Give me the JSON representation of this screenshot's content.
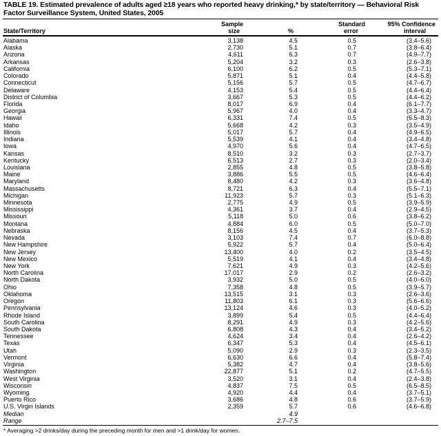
{
  "title": "TABLE 19. Estimated prevalence of adults aged ≥18 years who reported heavy drinking,* by state/territory — Behavioral Risk Factor Surveillance System, United States, 2005",
  "headers": {
    "state": "State/Territory",
    "sample_1": "Sample",
    "sample_2": "size",
    "pct": "%",
    "se_1": "Standard",
    "se_2": "error",
    "ci_1": "95% Confidence",
    "ci_2": "interval"
  },
  "rows": [
    [
      "Alabama",
      "3,138",
      "4.5",
      "0.5",
      "(3.4–5.6)"
    ],
    [
      "Alaska",
      "2,730",
      "5.1",
      "0.7",
      "(3.8–6.4)"
    ],
    [
      "Arizona",
      "4,611",
      "6.3",
      "0.7",
      "(4.9–7.7)"
    ],
    [
      "Arkansas",
      "5,204",
      "3.2",
      "0.3",
      "(2.6–3.8)"
    ],
    [
      "California",
      "6,100",
      "6.2",
      "0.5",
      "(5.3–7.1)"
    ],
    [
      "Colorado",
      "5,871",
      "5.1",
      "0.4",
      "(4.4–5.8)"
    ],
    [
      "Connecticut",
      "5,156",
      "5.7",
      "0.5",
      "(4.7–6.7)"
    ],
    [
      "Delaware",
      "4,153",
      "5.4",
      "0.5",
      "(4.4–6.4)"
    ],
    [
      "District of Columbia",
      "3,667",
      "5.3",
      "0.5",
      "(4.4–6.2)"
    ],
    [
      "Florida",
      "8,017",
      "6.9",
      "0.4",
      "(6.1–7.7)"
    ],
    [
      "Georgia",
      "5,967",
      "4.0",
      "0.4",
      "(3.3–4.7)"
    ],
    [
      "Hawaii",
      "6,331",
      "7.4",
      "0.5",
      "(6.5–8.3)"
    ],
    [
      "Idaho",
      "5,668",
      "4.2",
      "0.3",
      "(3.5–4.9)"
    ],
    [
      "Illinois",
      "5,017",
      "5.7",
      "0.4",
      "(4.9–6.5)"
    ],
    [
      "Indiana",
      "5,539",
      "4.1",
      "0.4",
      "(3.4–4.8)"
    ],
    [
      "Iowa",
      "4,970",
      "5.6",
      "0.4",
      "(4.7–6.5)"
    ],
    [
      "Kansas",
      "8,510",
      "3.2",
      "0.3",
      "(2.7–3.7)"
    ],
    [
      "Kentucky",
      "6,513",
      "2.7",
      "0.3",
      "(2.0–3.4)"
    ],
    [
      "Louisiana",
      "2,855",
      "4.8",
      "0.5",
      "(3.8–5.8)"
    ],
    [
      "Maine",
      "3,886",
      "5.5",
      "0.5",
      "(4.6–6.4)"
    ],
    [
      "Maryland",
      "8,480",
      "4.2",
      "0.3",
      "(3.6–4.8)"
    ],
    [
      "Massachusetts",
      "8,721",
      "6.3",
      "0.4",
      "(5.5–7.1)"
    ],
    [
      "Michigan",
      "11,923",
      "5.7",
      "0.3",
      "(5.1–6.3)"
    ],
    [
      "Minnesota",
      "2,775",
      "4.9",
      "0.5",
      "(3.9–5.9)"
    ],
    [
      "Mississippi",
      "4,361",
      "3.7",
      "0.4",
      "(2.9–4.5)"
    ],
    [
      "Missouri",
      "5,118",
      "5.0",
      "0.6",
      "(3.8–6.2)"
    ],
    [
      "Montana",
      "4,884",
      "6.0",
      "0.5",
      "(5.0–7.0)"
    ],
    [
      "Nebraska",
      "8,156",
      "4.5",
      "0.4",
      "(3.7–5.3)"
    ],
    [
      "Nevada",
      "3,103",
      "7.4",
      "0.7",
      "(6.0–8.8)"
    ],
    [
      "New Hampshire",
      "5,922",
      "5.7",
      "0.4",
      "(5.0–6.4)"
    ],
    [
      "New Jersey",
      "13,400",
      "4.0",
      "0.2",
      "(3.5–4.5)"
    ],
    [
      "New Mexico",
      "5,519",
      "4.1",
      "0.4",
      "(3.4–4.8)"
    ],
    [
      "New York",
      "7,621",
      "4.9",
      "0.3",
      "(4.2–5.6)"
    ],
    [
      "North Carolina",
      "17,017",
      "2.9",
      "0.2",
      "(2.6–3.2)"
    ],
    [
      "North Dakota",
      "3,932",
      "5.0",
      "0.5",
      "(4.0–6.0)"
    ],
    [
      "Ohio",
      "7,358",
      "4.8",
      "0.5",
      "(3.9–5.7)"
    ],
    [
      "Oklahoma",
      "13,515",
      "3.1",
      "0.3",
      "(2.6–3.6)"
    ],
    [
      "Oregon",
      "11,803",
      "6.1",
      "0.3",
      "(5.6–6.6)"
    ],
    [
      "Pennsylvania",
      "13,124",
      "4.6",
      "0.3",
      "(4.0–5.2)"
    ],
    [
      "Rhode Island",
      "3,899",
      "5.4",
      "0.5",
      "(4.4–6.4)"
    ],
    [
      "South Carolina",
      "8,291",
      "4.9",
      "0.3",
      "(4.2–5.6)"
    ],
    [
      "South Dakota",
      "6,808",
      "4.3",
      "0.4",
      "(3.4–5.2)"
    ],
    [
      "Tennessee",
      "4,624",
      "3.4",
      "0.4",
      "(2.6–4.2)"
    ],
    [
      "Texas",
      "6,347",
      "5.3",
      "0.4",
      "(4.5–6.1)"
    ],
    [
      "Utah",
      "5,090",
      "2.9",
      "0.3",
      "(2.3–3.5)"
    ],
    [
      "Vermont",
      "6,630",
      "6.6",
      "0.4",
      "(5.8–7.4)"
    ],
    [
      "Virginia",
      "5,382",
      "4.7",
      "0.4",
      "(3.8–5.6)"
    ],
    [
      "Washington",
      "22,877",
      "5.1",
      "0.2",
      "(4.7–5.5)"
    ],
    [
      "West Virginia",
      "3,520",
      "3.1",
      "0.4",
      "(2.4–3.8)"
    ],
    [
      "Wisconsin",
      "4,837",
      "7.5",
      "0.5",
      "(6.5–8.5)"
    ],
    [
      "Wyoming",
      "4,920",
      "4.4",
      "0.4",
      "(3.7–5.1)"
    ],
    [
      "Puerto Rico",
      "3,686",
      "4.8",
      "0.6",
      "(3.7–5.9)"
    ],
    [
      "U.S. Virgin Islands",
      "2,359",
      "5.7",
      "0.6",
      "(4.6–6.8)"
    ]
  ],
  "summary": [
    {
      "label": "Median",
      "value": "4.9"
    },
    {
      "label": "Range",
      "value": "2.7–7.5"
    }
  ],
  "footnote": "* Averaging >2 drinks/day during the preceding month for men and >1 drink/day for women."
}
